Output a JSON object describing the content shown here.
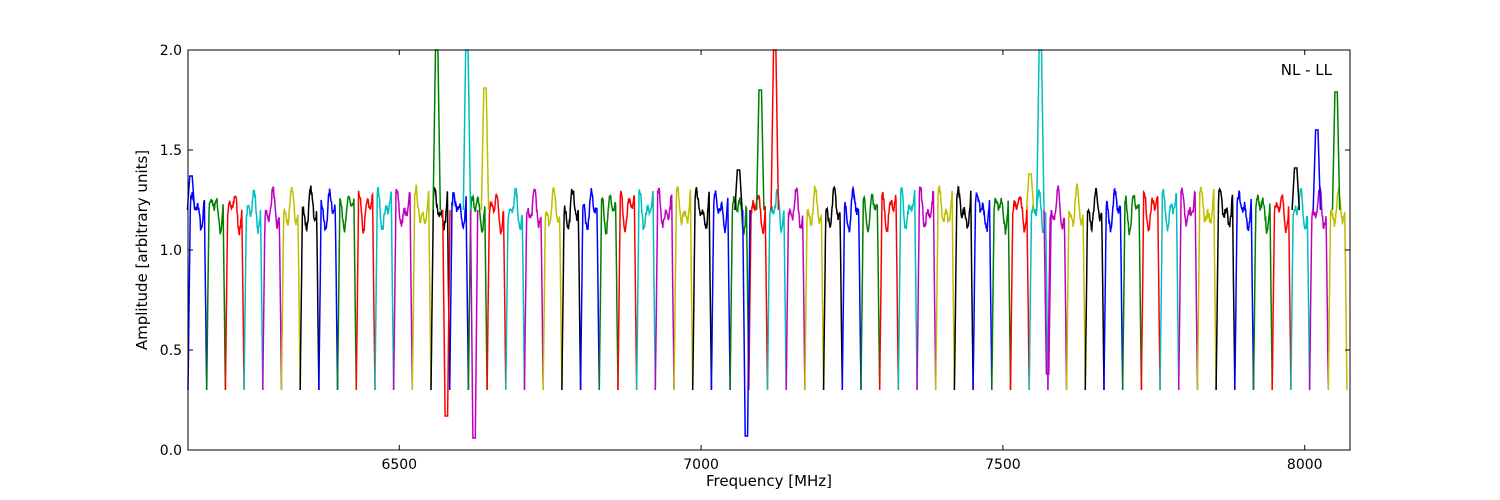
{
  "chart_data": {
    "type": "line",
    "title": "",
    "xlabel": "Frequency [MHz]",
    "ylabel": "Amplitude [arbitrary units]",
    "xlim": [
      6150,
      8075
    ],
    "ylim": [
      0.0,
      2.0
    ],
    "xticks": [
      6500,
      7000,
      7500,
      8000
    ],
    "xtick_labels": [
      "6500",
      "7000",
      "7500",
      "8000"
    ],
    "yticks": [
      0.0,
      0.5,
      1.0,
      1.5,
      2.0
    ],
    "ytick_labels": [
      "0.0",
      "0.5",
      "1.0",
      "1.5",
      "2.0"
    ],
    "grid": false,
    "annotation": "NL - LL",
    "color_cycle": [
      "#0000ff",
      "#008000",
      "#ff0000",
      "#00bfbf",
      "#bf00bf",
      "#bfbf00",
      "#000000"
    ],
    "band_count": 62,
    "band_range_mhz": [
      6150,
      8070
    ],
    "band_width_mhz": 31,
    "typical_passband_level": 1.2,
    "typical_floor_level": 0.3,
    "features": [
      {
        "x": 6155,
        "y": 1.37
      },
      {
        "x": 6562,
        "y": 2.0
      },
      {
        "x": 6578,
        "y": 0.17
      },
      {
        "x": 6612,
        "y": 2.0
      },
      {
        "x": 6624,
        "y": 0.06
      },
      {
        "x": 6642,
        "y": 1.81
      },
      {
        "x": 7062,
        "y": 1.4
      },
      {
        "x": 7075,
        "y": 0.07
      },
      {
        "x": 7098,
        "y": 1.8
      },
      {
        "x": 7122,
        "y": 2.0
      },
      {
        "x": 7562,
        "y": 2.0
      },
      {
        "x": 7574,
        "y": 0.38
      },
      {
        "x": 7545,
        "y": 1.38
      },
      {
        "x": 7985,
        "y": 1.41
      },
      {
        "x": 8020,
        "y": 1.6
      },
      {
        "x": 8052,
        "y": 1.79
      }
    ]
  }
}
